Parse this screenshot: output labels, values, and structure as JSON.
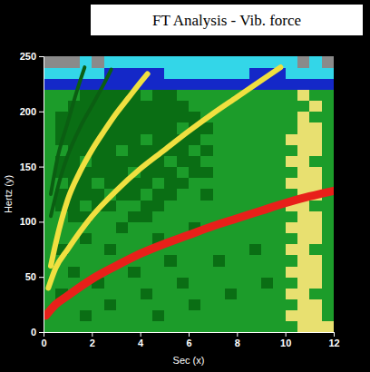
{
  "chart_data": {
    "type": "heatmap",
    "title": "FT Analysis - Vib. force",
    "x_label": "Sec (x)",
    "y_label": "Hertz (y)",
    "xlim": [
      0,
      12
    ],
    "ylim": [
      0,
      250
    ],
    "xticks": [
      0,
      2,
      4,
      6,
      8,
      10,
      12
    ],
    "yticks": [
      0,
      50,
      100,
      150,
      200,
      250
    ],
    "x_bins": [
      0,
      0.5,
      1,
      1.5,
      2,
      2.5,
      3,
      3.5,
      4,
      4.5,
      5,
      5.5,
      6,
      6.5,
      7,
      7.5,
      8,
      8.5,
      9,
      9.5,
      10,
      10.5,
      11,
      11.5,
      12
    ],
    "y_bins": [
      0,
      10,
      20,
      30,
      40,
      50,
      60,
      70,
      80,
      90,
      100,
      110,
      120,
      130,
      140,
      150,
      160,
      170,
      180,
      190,
      200,
      210,
      220,
      230,
      240,
      250
    ],
    "cells": [
      [
        4,
        4,
        4,
        4,
        4,
        4,
        4,
        4,
        4,
        4,
        4,
        4,
        4,
        4,
        4,
        4,
        4,
        4,
        4,
        4,
        4,
        5,
        5,
        5
      ],
      [
        4,
        4,
        4,
        3,
        4,
        4,
        4,
        4,
        4,
        3,
        4,
        4,
        4,
        4,
        4,
        4,
        4,
        4,
        4,
        4,
        5,
        5,
        5,
        4
      ],
      [
        4,
        4,
        4,
        4,
        4,
        3,
        4,
        4,
        4,
        4,
        4,
        4,
        3,
        4,
        4,
        4,
        4,
        4,
        4,
        4,
        4,
        5,
        5,
        4
      ],
      [
        4,
        3,
        4,
        4,
        4,
        4,
        4,
        4,
        3,
        4,
        4,
        4,
        4,
        4,
        4,
        3,
        4,
        4,
        4,
        4,
        5,
        5,
        4,
        4
      ],
      [
        4,
        4,
        4,
        4,
        3,
        4,
        4,
        4,
        4,
        4,
        4,
        3,
        4,
        4,
        4,
        4,
        4,
        4,
        3,
        4,
        4,
        5,
        5,
        4
      ],
      [
        4,
        4,
        3,
        4,
        4,
        4,
        4,
        3,
        4,
        4,
        4,
        4,
        4,
        4,
        4,
        4,
        4,
        4,
        4,
        4,
        5,
        5,
        5,
        4
      ],
      [
        4,
        4,
        4,
        4,
        4,
        4,
        4,
        4,
        4,
        4,
        3,
        4,
        4,
        4,
        3,
        4,
        4,
        4,
        4,
        4,
        4,
        5,
        5,
        4
      ],
      [
        4,
        3,
        4,
        4,
        4,
        3,
        4,
        4,
        4,
        4,
        4,
        4,
        4,
        4,
        4,
        4,
        4,
        3,
        4,
        4,
        5,
        5,
        4,
        4
      ],
      [
        4,
        4,
        4,
        3,
        4,
        4,
        4,
        4,
        4,
        3,
        4,
        4,
        4,
        4,
        4,
        4,
        4,
        4,
        4,
        4,
        4,
        5,
        5,
        4
      ],
      [
        4,
        4,
        4,
        4,
        4,
        4,
        3,
        4,
        4,
        4,
        4,
        4,
        3,
        4,
        4,
        4,
        4,
        4,
        4,
        4,
        5,
        5,
        5,
        4
      ],
      [
        4,
        4,
        3,
        3,
        4,
        4,
        4,
        3,
        3,
        4,
        4,
        4,
        4,
        4,
        4,
        4,
        4,
        4,
        4,
        4,
        4,
        5,
        5,
        4
      ],
      [
        4,
        3,
        3,
        4,
        3,
        3,
        4,
        4,
        3,
        3,
        4,
        4,
        4,
        4,
        4,
        4,
        4,
        4,
        4,
        4,
        5,
        5,
        4,
        4
      ],
      [
        4,
        3,
        3,
        3,
        3,
        4,
        3,
        3,
        4,
        3,
        3,
        4,
        4,
        3,
        4,
        4,
        4,
        4,
        4,
        4,
        4,
        5,
        5,
        4
      ],
      [
        4,
        4,
        3,
        3,
        4,
        3,
        3,
        3,
        3,
        4,
        3,
        3,
        4,
        4,
        4,
        4,
        4,
        4,
        4,
        4,
        5,
        5,
        5,
        4
      ],
      [
        4,
        3,
        3,
        3,
        3,
        3,
        3,
        4,
        3,
        3,
        3,
        4,
        3,
        3,
        4,
        4,
        4,
        4,
        4,
        4,
        4,
        5,
        5,
        4
      ],
      [
        4,
        3,
        3,
        4,
        3,
        3,
        3,
        3,
        3,
        3,
        4,
        3,
        3,
        4,
        4,
        4,
        4,
        4,
        4,
        4,
        5,
        5,
        4,
        4
      ],
      [
        4,
        4,
        3,
        3,
        3,
        3,
        4,
        3,
        3,
        3,
        3,
        3,
        4,
        3,
        4,
        4,
        4,
        4,
        4,
        4,
        4,
        5,
        5,
        4
      ],
      [
        4,
        3,
        3,
        3,
        3,
        3,
        3,
        3,
        4,
        3,
        3,
        3,
        3,
        4,
        4,
        4,
        4,
        4,
        4,
        4,
        5,
        5,
        5,
        4
      ],
      [
        4,
        3,
        3,
        3,
        3,
        3,
        3,
        3,
        3,
        3,
        3,
        4,
        3,
        3,
        4,
        4,
        4,
        4,
        4,
        4,
        4,
        5,
        5,
        4
      ],
      [
        4,
        3,
        3,
        3,
        3,
        3,
        3,
        3,
        3,
        3,
        3,
        3,
        3,
        4,
        4,
        4,
        4,
        4,
        4,
        4,
        4,
        5,
        4,
        4
      ],
      [
        4,
        4,
        3,
        3,
        3,
        3,
        3,
        3,
        3,
        3,
        3,
        3,
        4,
        4,
        4,
        4,
        4,
        4,
        4,
        4,
        4,
        4,
        5,
        4
      ],
      [
        4,
        4,
        4,
        3,
        3,
        3,
        3,
        3,
        4,
        3,
        3,
        4,
        4,
        4,
        4,
        4,
        4,
        4,
        4,
        4,
        4,
        5,
        4,
        4
      ],
      [
        2,
        2,
        2,
        2,
        2,
        2,
        2,
        2,
        2,
        2,
        2,
        2,
        2,
        2,
        2,
        2,
        2,
        2,
        2,
        2,
        2,
        2,
        2,
        2
      ],
      [
        1,
        1,
        1,
        1,
        1,
        2,
        2,
        2,
        2,
        2,
        1,
        1,
        1,
        1,
        1,
        1,
        1,
        2,
        2,
        2,
        1,
        1,
        1,
        1
      ],
      [
        0,
        0,
        0,
        1,
        0,
        1,
        1,
        1,
        1,
        1,
        1,
        1,
        1,
        1,
        1,
        1,
        1,
        1,
        1,
        1,
        1,
        0,
        1,
        0
      ]
    ],
    "series": [
      {
        "type": "line",
        "color": "#e8201a",
        "x": [
          0.1,
          0.5,
          1,
          2,
          3,
          4,
          5,
          6,
          7,
          8,
          9,
          10,
          11,
          12
        ],
        "values": [
          15,
          25,
          33,
          48,
          60,
          71,
          80,
          88,
          96,
          103,
          110,
          117,
          123,
          128
        ]
      },
      {
        "type": "line",
        "color": "#f0e040",
        "x": [
          0.2,
          0.5,
          1,
          2,
          3,
          4,
          5,
          6,
          7,
          8,
          9,
          9.8
        ],
        "values": [
          40,
          58,
          75,
          105,
          128,
          148,
          165,
          182,
          198,
          213,
          228,
          240
        ]
      },
      {
        "type": "line",
        "color": "#f0e040",
        "x": [
          0.3,
          0.5,
          1,
          1.5,
          2,
          2.5,
          3,
          3.5,
          4,
          4.3
        ],
        "values": [
          60,
          80,
          120,
          145,
          165,
          182,
          198,
          212,
          226,
          234
        ]
      },
      {
        "type": "line",
        "color": "#0b5e12",
        "x": [
          0.3,
          0.7,
          1,
          1.5,
          2,
          2.5,
          2.8
        ],
        "values": [
          105,
          140,
          160,
          185,
          205,
          225,
          238
        ]
      },
      {
        "type": "line",
        "color": "#0b5e12",
        "x": [
          0.3,
          0.6,
          1,
          1.4,
          1.7
        ],
        "values": [
          125,
          160,
          190,
          220,
          240
        ]
      }
    ]
  }
}
